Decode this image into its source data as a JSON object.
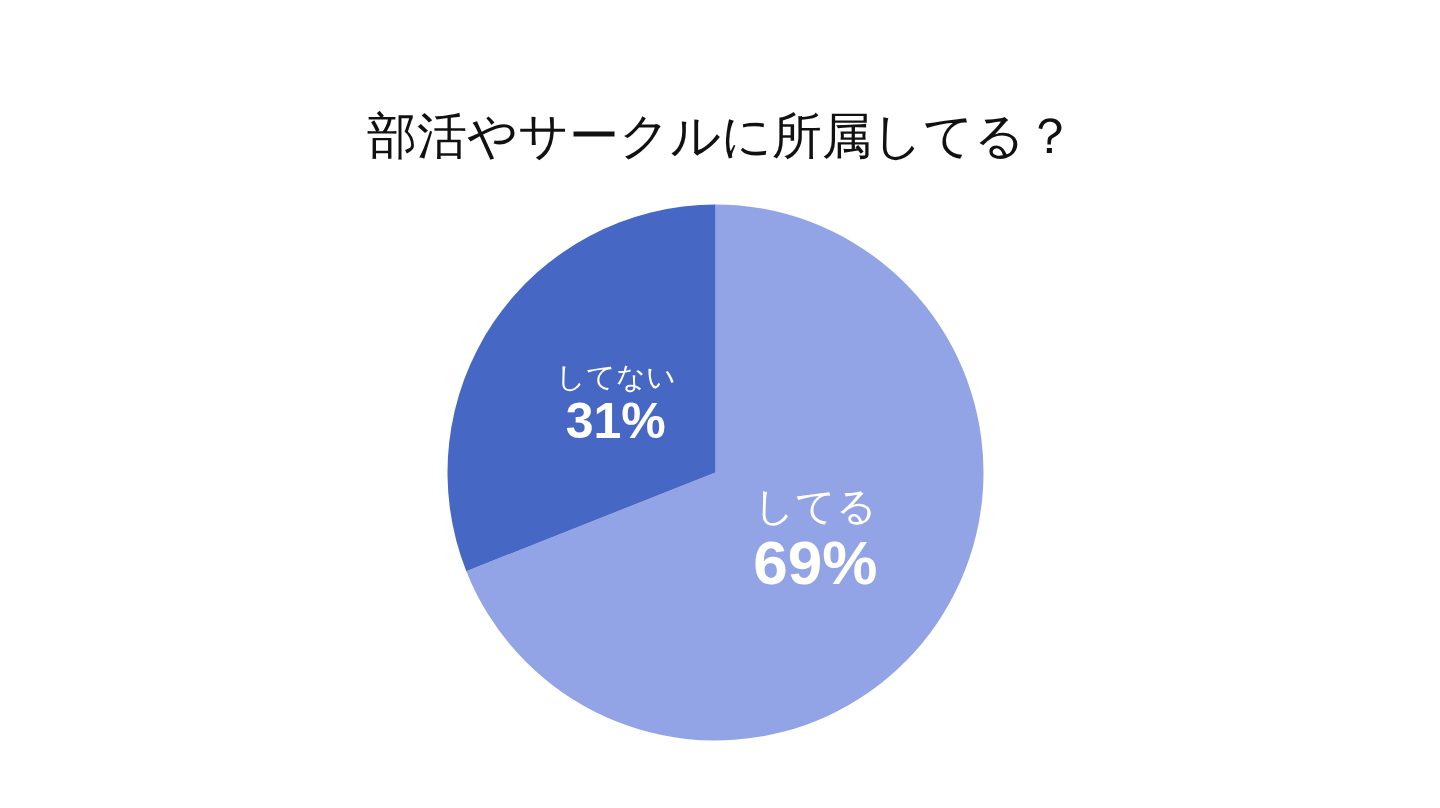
{
  "chart_data": {
    "type": "pie",
    "title": "部活やサークルに所属してる？",
    "categories": [
      "してる",
      "してない"
    ],
    "values": [
      69,
      31
    ],
    "colors": [
      "#93a4e6",
      "#4767c4"
    ],
    "value_labels": [
      "69%",
      "31%"
    ]
  }
}
